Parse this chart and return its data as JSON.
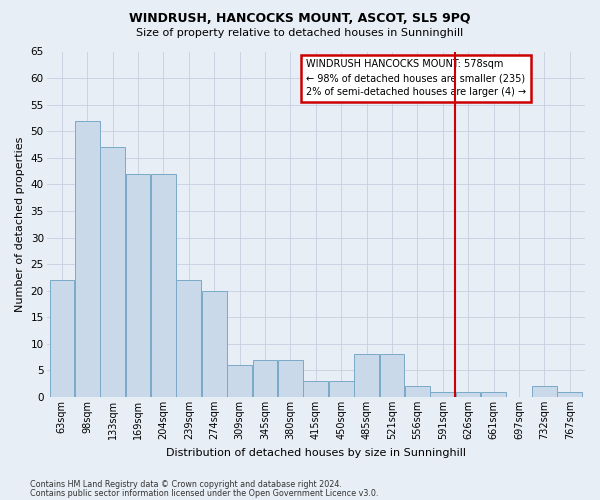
{
  "title": "WINDRUSH, HANCOCKS MOUNT, ASCOT, SL5 9PQ",
  "subtitle": "Size of property relative to detached houses in Sunninghill",
  "xlabel": "Distribution of detached houses by size in Sunninghill",
  "ylabel": "Number of detached properties",
  "footnote1": "Contains HM Land Registry data © Crown copyright and database right 2024.",
  "footnote2": "Contains public sector information licensed under the Open Government Licence v3.0.",
  "categories": [
    "63sqm",
    "98sqm",
    "133sqm",
    "169sqm",
    "204sqm",
    "239sqm",
    "274sqm",
    "309sqm",
    "345sqm",
    "380sqm",
    "415sqm",
    "450sqm",
    "485sqm",
    "521sqm",
    "556sqm",
    "591sqm",
    "626sqm",
    "661sqm",
    "697sqm",
    "732sqm",
    "767sqm"
  ],
  "values": [
    22,
    52,
    47,
    42,
    42,
    22,
    20,
    6,
    7,
    7,
    3,
    3,
    8,
    8,
    2,
    1,
    1,
    1,
    0,
    2,
    1
  ],
  "bar_color": "#c9d9ea",
  "bar_edge_color": "#7aaac8",
  "grid_color": "#c5cfe0",
  "bg_color": "#e8eef5",
  "annotation_text": "WINDRUSH HANCOCKS MOUNT: 578sqm\n← 98% of detached houses are smaller (235)\n2% of semi-detached houses are larger (4) →",
  "annotation_box_facecolor": "#ffffff",
  "annotation_box_edge": "#cc0000",
  "marker_bar_index": 15,
  "ylim": [
    0,
    65
  ],
  "yticks": [
    0,
    5,
    10,
    15,
    20,
    25,
    30,
    35,
    40,
    45,
    50,
    55,
    60,
    65
  ]
}
